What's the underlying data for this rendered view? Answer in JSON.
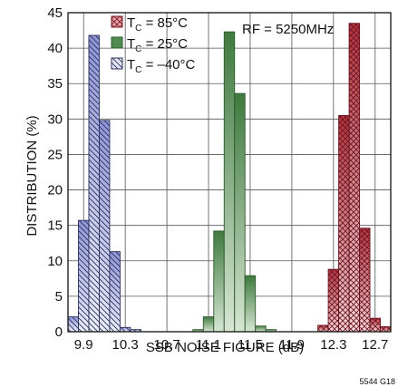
{
  "chart_data": {
    "type": "bar",
    "subtype": "histogram",
    "xlabel": "SSB NOISE FIGURE (dB)",
    "ylabel": "DISTRIBUTION (%)",
    "xlim": [
      9.75,
      12.85
    ],
    "ylim": [
      0,
      45
    ],
    "bin_width": 0.1,
    "x_ticks": [
      "9.9",
      "10.3",
      "10.7",
      "11.1",
      "11.5",
      "11.9",
      "12.3",
      "12.7"
    ],
    "x_tick_values": [
      9.9,
      10.3,
      10.7,
      11.1,
      11.5,
      11.9,
      12.3,
      12.7
    ],
    "y_ticks": [
      0,
      5,
      10,
      15,
      20,
      25,
      30,
      35,
      40,
      45
    ],
    "grid": true,
    "legend_position": "top-left",
    "annotation": "RF = 5250MHz",
    "figure_id": "5544 G18",
    "series": [
      {
        "name": "T_C = 85°C",
        "name_main": "T",
        "name_sub": "C",
        "name_rest": " = 85°C",
        "fill": "#e8a5a9",
        "stroke": "#7a1a24",
        "pattern": "crosshatch",
        "x": [
          12.2,
          12.3,
          12.4,
          12.5,
          12.6,
          12.7,
          12.8
        ],
        "values": [
          0.9,
          8.8,
          30.5,
          43.5,
          14.6,
          1.9,
          0.7
        ]
      },
      {
        "name": "T_C = 25°C",
        "name_main": "T",
        "name_sub": "C",
        "name_rest": " = 25°C",
        "fill": "#4f8a4f",
        "stroke": "#2e5a2e",
        "pattern": "gradient",
        "x": [
          11.0,
          11.1,
          11.2,
          11.3,
          11.4,
          11.5,
          11.6,
          11.7
        ],
        "values": [
          0.3,
          2.1,
          14.2,
          42.3,
          33.6,
          7.9,
          0.8,
          0.3
        ]
      },
      {
        "name": "T_C = –40°C",
        "name_main": "T",
        "name_sub": "C",
        "name_rest": " = –40°C",
        "fill": "#c9cdef",
        "stroke": "#2a2e5a",
        "pattern": "diagonal",
        "x": [
          9.8,
          9.9,
          10.0,
          10.1,
          10.2,
          10.3,
          10.4
        ],
        "values": [
          2.1,
          15.7,
          41.8,
          29.8,
          11.3,
          0.6,
          0.3
        ]
      }
    ]
  }
}
